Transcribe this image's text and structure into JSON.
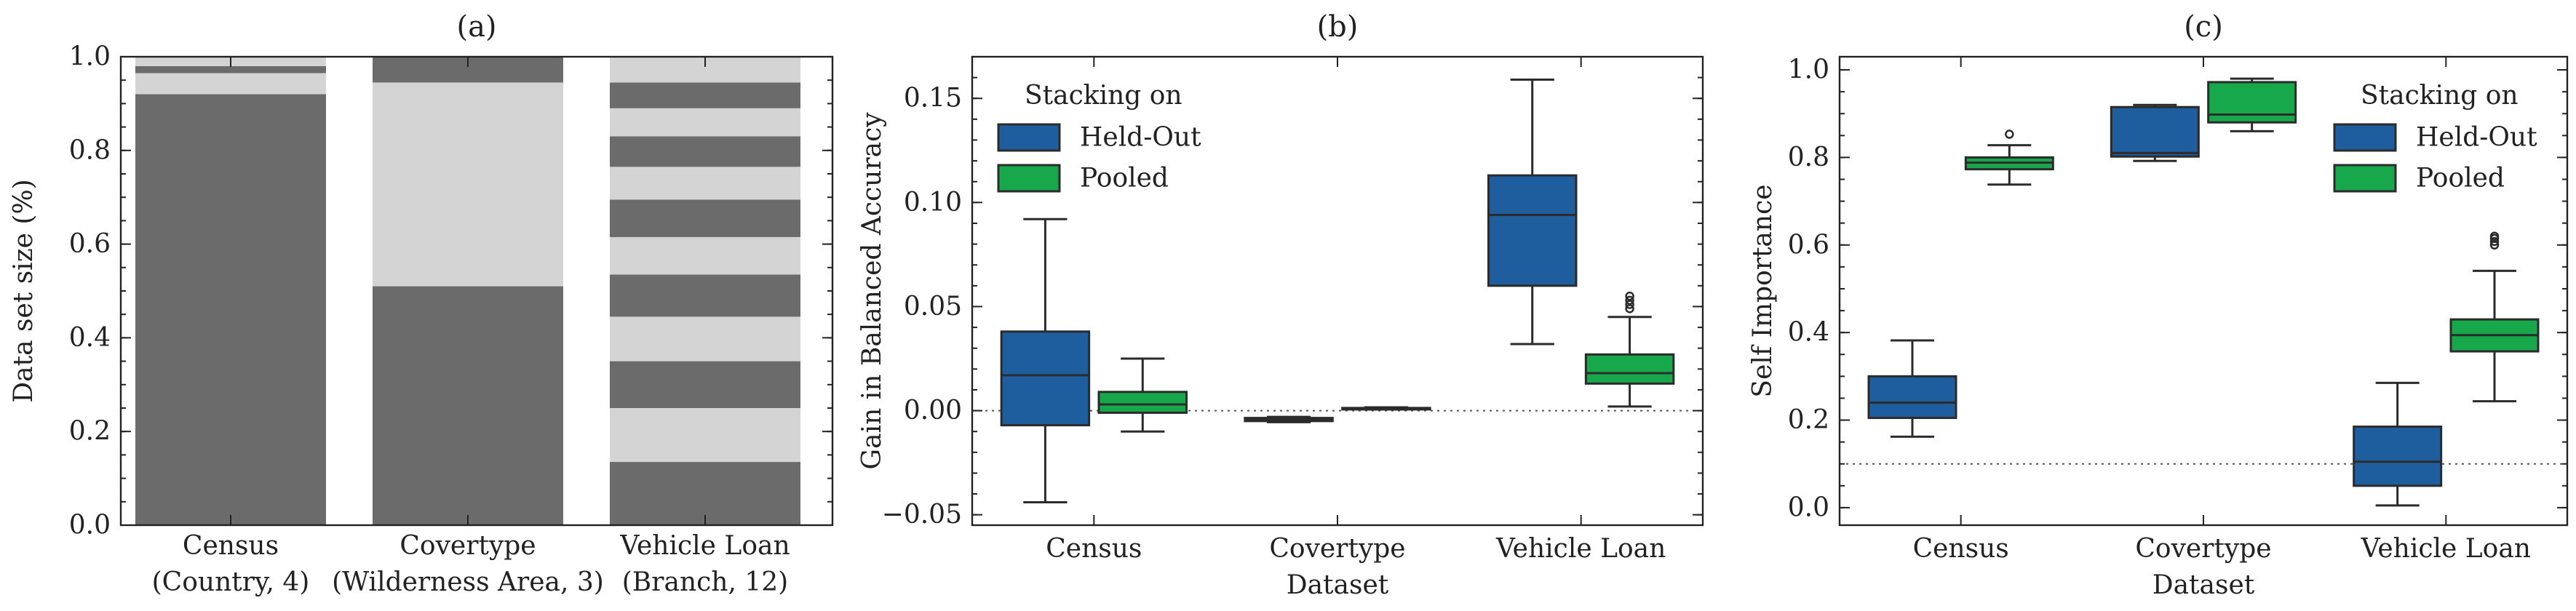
{
  "colors": {
    "dark_segment": "#6b6b6b",
    "light_segment": "#d4d4d4",
    "held_out": "#1f5e9e",
    "pooled": "#18a84c",
    "edge": "#2b2b2b"
  },
  "chart_data": [
    {
      "type": "bar",
      "subtype": "stacked-proportion",
      "title": "(a)",
      "xlabel": "",
      "ylabel": "Data set size (%)",
      "ylim": [
        0,
        1.0
      ],
      "yticks": [
        0.0,
        0.2,
        0.4,
        0.6,
        0.8,
        1.0
      ],
      "ytick_labels": [
        "0.0",
        "0.2",
        "0.4",
        "0.6",
        "0.8",
        "1.0"
      ],
      "grid": false,
      "categories": [
        {
          "line1": "Census",
          "line2": "(Country, 4)",
          "segments": [
            0.92,
            0.045,
            0.015,
            0.02
          ]
        },
        {
          "line1": "Covertype",
          "line2": "(Wilderness Area, 3)",
          "segments": [
            0.51,
            0.435,
            0.055
          ]
        },
        {
          "line1": "Vehicle Loan",
          "line2": "(Branch, 12)",
          "segments": [
            0.135,
            0.115,
            0.1,
            0.095,
            0.09,
            0.08,
            0.08,
            0.07,
            0.065,
            0.06,
            0.055,
            0.055
          ]
        }
      ]
    },
    {
      "type": "box",
      "title": "(b)",
      "xlabel": "Dataset",
      "ylabel": "Gain in Balanced Accuracy",
      "ylim": [
        -0.055,
        0.17
      ],
      "yticks": [
        -0.05,
        0.0,
        0.05,
        0.1,
        0.15
      ],
      "ytick_labels": [
        "−0.05",
        "0.00",
        "0.05",
        "0.10",
        "0.15"
      ],
      "reference_line": 0.0,
      "categories": [
        "Census",
        "Covertype",
        "Vehicle Loan"
      ],
      "legend": {
        "title": "Stacking on",
        "position": "top-left",
        "entries": [
          "Held-Out",
          "Pooled"
        ]
      },
      "series": [
        {
          "name": "Held-Out",
          "boxes": [
            {
              "whislo": -0.044,
              "q1": -0.007,
              "med": 0.017,
              "q3": 0.038,
              "whishi": 0.092,
              "fliers": []
            },
            {
              "whislo": -0.0055,
              "q1": -0.005,
              "med": -0.004,
              "q3": -0.0035,
              "whishi": -0.003,
              "fliers": []
            },
            {
              "whislo": 0.032,
              "q1": 0.06,
              "med": 0.094,
              "q3": 0.113,
              "whishi": 0.159,
              "fliers": []
            }
          ]
        },
        {
          "name": "Pooled",
          "boxes": [
            {
              "whislo": -0.01,
              "q1": -0.001,
              "med": 0.003,
              "q3": 0.009,
              "whishi": 0.025,
              "fliers": []
            },
            {
              "whislo": 0.0006,
              "q1": 0.0008,
              "med": 0.0011,
              "q3": 0.0013,
              "whishi": 0.0016,
              "fliers": []
            },
            {
              "whislo": 0.002,
              "q1": 0.013,
              "med": 0.018,
              "q3": 0.027,
              "whishi": 0.045,
              "fliers": [
                0.049,
                0.051,
                0.053,
                0.055
              ]
            }
          ]
        }
      ]
    },
    {
      "type": "box",
      "title": "(c)",
      "xlabel": "Dataset",
      "ylabel": "Self Importance",
      "ylim": [
        -0.04,
        1.03
      ],
      "yticks": [
        0.0,
        0.2,
        0.4,
        0.6,
        0.8,
        1.0
      ],
      "ytick_labels": [
        "0.0",
        "0.2",
        "0.4",
        "0.6",
        "0.8",
        "1.0"
      ],
      "reference_line": 0.1,
      "categories": [
        "Census",
        "Covertype",
        "Vehicle Loan"
      ],
      "legend": {
        "title": "Stacking on",
        "position": "top-right",
        "entries": [
          "Held-Out",
          "Pooled"
        ]
      },
      "series": [
        {
          "name": "Held-Out",
          "boxes": [
            {
              "whislo": 0.162,
              "q1": 0.205,
              "med": 0.24,
              "q3": 0.3,
              "whishi": 0.382,
              "fliers": []
            },
            {
              "whislo": 0.792,
              "q1": 0.802,
              "med": 0.81,
              "q3": 0.915,
              "whishi": 0.92,
              "fliers": []
            },
            {
              "whislo": 0.005,
              "q1": 0.05,
              "med": 0.105,
              "q3": 0.185,
              "whishi": 0.285,
              "fliers": []
            }
          ]
        },
        {
          "name": "Pooled",
          "boxes": [
            {
              "whislo": 0.738,
              "q1": 0.773,
              "med": 0.788,
              "q3": 0.8,
              "whishi": 0.828,
              "fliers": [
                0.853
              ]
            },
            {
              "whislo": 0.86,
              "q1": 0.88,
              "med": 0.898,
              "q3": 0.972,
              "whishi": 0.98,
              "fliers": []
            },
            {
              "whislo": 0.243,
              "q1": 0.357,
              "med": 0.394,
              "q3": 0.43,
              "whishi": 0.541,
              "fliers": [
                0.6,
                0.608,
                0.615,
                0.62
              ]
            }
          ]
        }
      ]
    }
  ]
}
